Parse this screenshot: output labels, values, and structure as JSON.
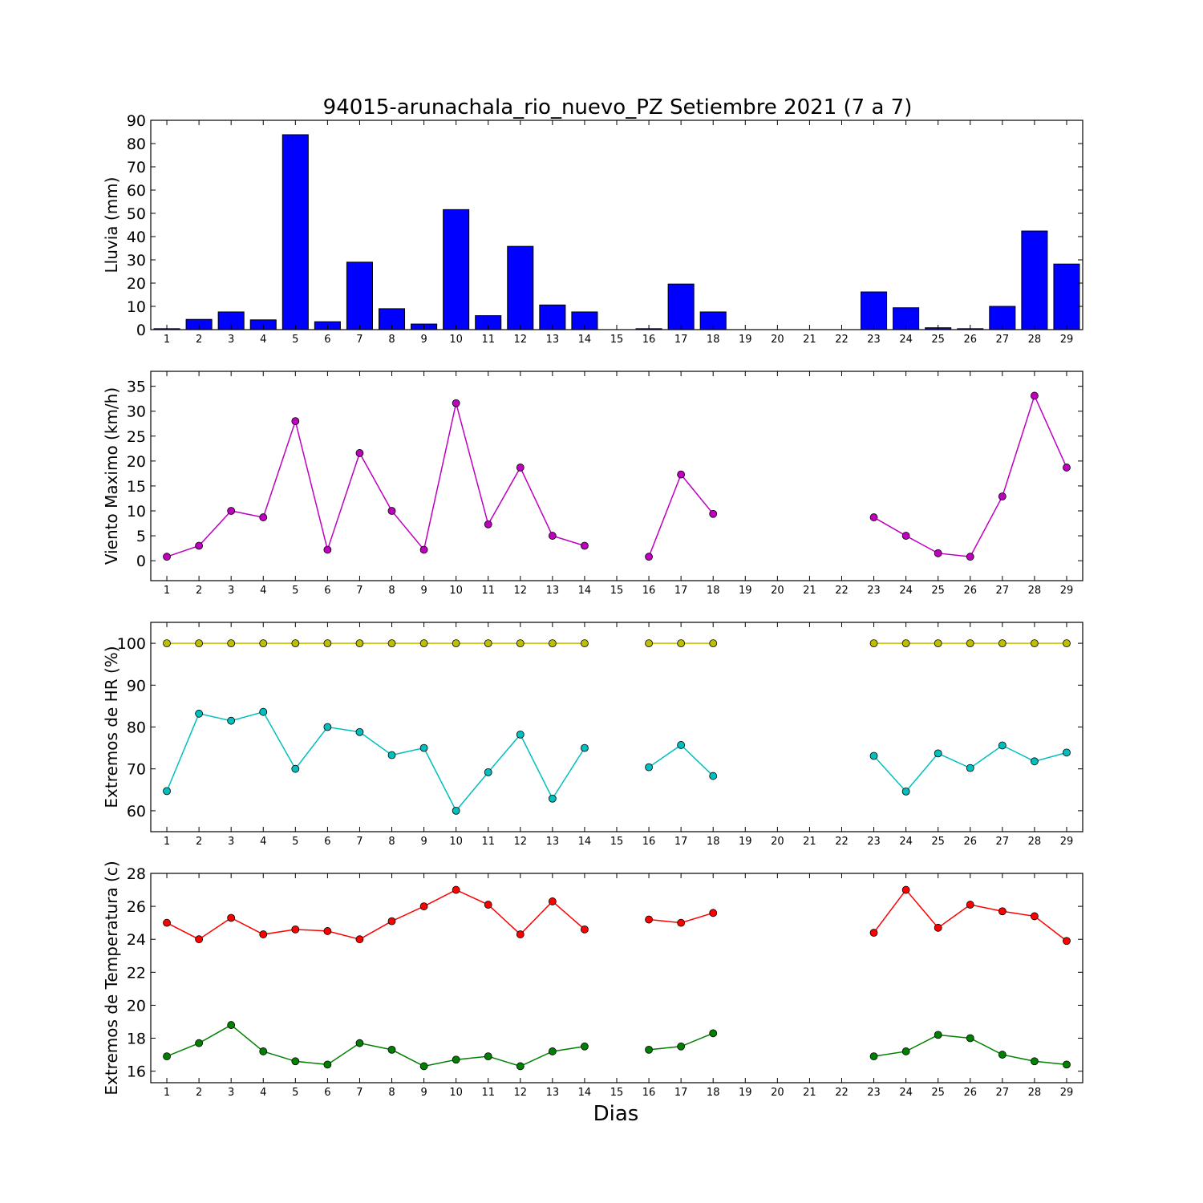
{
  "figure": {
    "title": "94015-arunachala_rio_nuevo_PZ Setiembre 2021  (7 a 7)",
    "xlabel": "Dias"
  },
  "chart_data": [
    {
      "type": "bar",
      "ylabel": "Lluvia (mm)",
      "ylim": [
        0,
        90
      ],
      "yticks": [
        0,
        10,
        20,
        30,
        40,
        50,
        60,
        70,
        80,
        90
      ],
      "x": [
        "1",
        "2",
        "3",
        "4",
        "5",
        "6",
        "7",
        "8",
        "9",
        "10",
        "11",
        "12",
        "13",
        "14",
        "15",
        "16",
        "17",
        "18",
        "19",
        "20",
        "21",
        "22",
        "23",
        "24",
        "25",
        "26",
        "27",
        "28",
        "29"
      ],
      "series": [
        {
          "color": "#0000ff",
          "values": [
            0.4,
            4.4,
            7.6,
            4.2,
            83.8,
            3.4,
            29.0,
            9.0,
            2.4,
            51.6,
            6.0,
            35.8,
            10.6,
            7.6,
            0,
            0.4,
            19.6,
            7.6,
            0,
            0,
            0,
            0,
            16.2,
            9.4,
            0.8,
            0.4,
            10.0,
            42.4,
            28.2
          ]
        }
      ],
      "grid": false
    },
    {
      "type": "line",
      "ylabel": "Viento Maximo (km/h)",
      "ylim": [
        -4,
        38
      ],
      "yticks": [
        0,
        5,
        10,
        15,
        20,
        25,
        30,
        35
      ],
      "x": [
        "1",
        "2",
        "3",
        "4",
        "5",
        "6",
        "7",
        "8",
        "9",
        "10",
        "11",
        "12",
        "13",
        "14",
        "15",
        "16",
        "17",
        "18",
        "19",
        "20",
        "21",
        "22",
        "23",
        "24",
        "25",
        "26",
        "27",
        "28",
        "29"
      ],
      "series": [
        {
          "color": "#bf00bf",
          "values": [
            0.8,
            3.0,
            10.0,
            8.7,
            28.0,
            2.2,
            21.6,
            10.0,
            2.2,
            31.6,
            7.3,
            18.7,
            5.0,
            3.0,
            null,
            0.8,
            17.3,
            9.4,
            null,
            null,
            null,
            null,
            8.7,
            5.0,
            1.5,
            0.8,
            12.9,
            33.1,
            18.7
          ]
        }
      ],
      "grid": false
    },
    {
      "type": "line",
      "ylabel": "Extremos de HR (%)",
      "ylim": [
        55,
        105
      ],
      "yticks": [
        60,
        70,
        80,
        90,
        100
      ],
      "x": [
        "1",
        "2",
        "3",
        "4",
        "5",
        "6",
        "7",
        "8",
        "9",
        "10",
        "11",
        "12",
        "13",
        "14",
        "15",
        "16",
        "17",
        "18",
        "19",
        "20",
        "21",
        "22",
        "23",
        "24",
        "25",
        "26",
        "27",
        "28",
        "29"
      ],
      "series": [
        {
          "color": "#bfbf00",
          "values": [
            100,
            100,
            100,
            100,
            100,
            100,
            100,
            100,
            100,
            100,
            100,
            100,
            100,
            100,
            null,
            100,
            100,
            100,
            null,
            null,
            null,
            null,
            100,
            100,
            100,
            100,
            100,
            100,
            100
          ]
        },
        {
          "color": "#00bfbf",
          "values": [
            64.7,
            83.2,
            81.5,
            83.6,
            70.0,
            80.0,
            78.8,
            73.3,
            75.0,
            60.0,
            69.2,
            78.2,
            62.9,
            75.0,
            null,
            70.4,
            75.7,
            68.3,
            null,
            null,
            null,
            null,
            73.1,
            64.6,
            73.7,
            70.2,
            75.6,
            71.8,
            73.9
          ]
        }
      ],
      "grid": false
    },
    {
      "type": "line",
      "ylabel": "Extremos de Temperatura (c)",
      "ylim": [
        15.3,
        28
      ],
      "yticks": [
        16,
        18,
        20,
        22,
        24,
        26,
        28
      ],
      "x": [
        "1",
        "2",
        "3",
        "4",
        "5",
        "6",
        "7",
        "8",
        "9",
        "10",
        "11",
        "12",
        "13",
        "14",
        "15",
        "16",
        "17",
        "18",
        "19",
        "20",
        "21",
        "22",
        "23",
        "24",
        "25",
        "26",
        "27",
        "28",
        "29"
      ],
      "series": [
        {
          "color": "#ff0000",
          "values": [
            25.0,
            24.0,
            25.3,
            24.3,
            24.6,
            24.5,
            24.0,
            25.1,
            26.0,
            27.0,
            26.1,
            24.3,
            26.3,
            24.6,
            null,
            25.2,
            25.0,
            25.6,
            null,
            null,
            null,
            null,
            24.4,
            27.0,
            24.7,
            26.1,
            25.7,
            25.4,
            23.9
          ]
        },
        {
          "color": "#008000",
          "values": [
            16.9,
            17.7,
            18.8,
            17.2,
            16.6,
            16.4,
            17.7,
            17.3,
            16.3,
            16.7,
            16.9,
            16.3,
            17.2,
            17.5,
            null,
            17.3,
            17.5,
            18.3,
            null,
            null,
            null,
            null,
            16.9,
            17.2,
            18.2,
            18.0,
            17.0,
            16.6,
            16.4
          ]
        }
      ],
      "grid": false
    }
  ]
}
